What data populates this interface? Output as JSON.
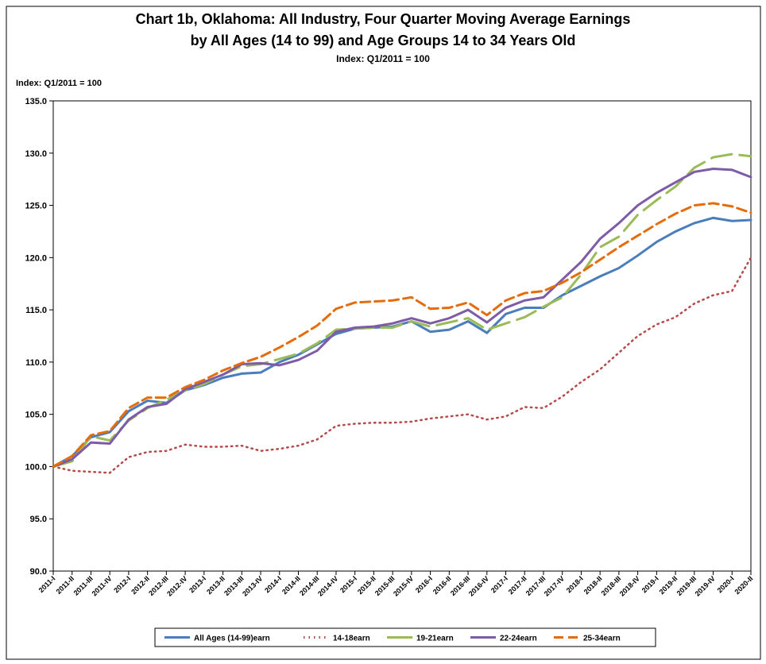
{
  "chart_data": {
    "type": "line",
    "title": "Chart 1b, Oklahoma: All Industry, Four Quarter Moving Average Earnings",
    "subtitle": "by All Ages (14 to 99)  and Age Groups 14 to 34 Years Old",
    "subtitle2": "Index: Q1/2011 = 100",
    "y_label": "Index: Q1/2011 = 100",
    "categories": [
      "2011-I",
      "2011-II",
      "2011-III",
      "2011-IV",
      "2012-I",
      "2012-II",
      "2012-III",
      "2012-IV",
      "2013-I",
      "2013-II",
      "2013-III",
      "2013-IV",
      "2014-I",
      "2014-II",
      "2014-III",
      "2014-IV",
      "2015-I",
      "2015-II",
      "2015-III",
      "2015-IV",
      "2016-I",
      "2016-II",
      "2016-III",
      "2016-IV",
      "2017-I",
      "2017-II",
      "2017-III",
      "2017-IV",
      "2018-I",
      "2018-II",
      "2018-III",
      "2018-IV",
      "2019-I",
      "2019-II",
      "2019-III",
      "2019-IV",
      "2020-I",
      "2020-II"
    ],
    "ylim": [
      90,
      135
    ],
    "yticks": [
      {
        "value": 90,
        "label": "90.0"
      },
      {
        "value": 95,
        "label": "95.0"
      },
      {
        "value": 100,
        "label": "100.0"
      },
      {
        "value": 105,
        "label": "105.0"
      },
      {
        "value": 110,
        "label": "110.0"
      },
      {
        "value": 115,
        "label": "115.0"
      },
      {
        "value": 120,
        "label": "120.0"
      },
      {
        "value": 125,
        "label": "125.0"
      },
      {
        "value": 130,
        "label": "130.0"
      },
      {
        "value": 135,
        "label": "135.0"
      }
    ],
    "legend": "bottom",
    "series": [
      {
        "name": "All Ages (14-99)earn",
        "color": "#4a7ebb",
        "style": "solid",
        "values": [
          100,
          101,
          102.8,
          103.3,
          105.3,
          106.3,
          106.1,
          107.3,
          107.8,
          108.5,
          108.9,
          109.0,
          110.0,
          110.7,
          111.7,
          112.7,
          113.2,
          113.3,
          113.4,
          113.9,
          112.9,
          113.1,
          113.9,
          112.8,
          114.6,
          115.2,
          115.2,
          116.4,
          117.3,
          118.2,
          119.0,
          120.2,
          121.5,
          122.5,
          123.3,
          123.8,
          123.5,
          123.6
        ]
      },
      {
        "name": "14-18earn",
        "color": "#b5494a",
        "style": "dotted",
        "values": [
          100,
          99.6,
          99.5,
          99.4,
          100.9,
          101.4,
          101.5,
          102.1,
          101.9,
          101.9,
          102.0,
          101.5,
          101.7,
          102.0,
          102.6,
          103.9,
          104.1,
          104.2,
          104.2,
          104.3,
          104.6,
          104.8,
          105.0,
          104.5,
          104.8,
          105.7,
          105.6,
          106.7,
          108.1,
          109.3,
          110.9,
          112.5,
          113.6,
          114.3,
          115.6,
          116.4,
          116.8,
          120.0
        ]
      },
      {
        "name": "19-21earn",
        "color": "#9bbb59",
        "style": "longdash",
        "values": [
          100,
          100.5,
          102.9,
          102.5,
          104.4,
          105.6,
          106.4,
          107.3,
          107.9,
          108.8,
          109.6,
          109.8,
          110.3,
          110.8,
          111.8,
          113.1,
          113.2,
          113.3,
          113.3,
          113.9,
          113.4,
          113.8,
          114.2,
          113.1,
          113.7,
          114.3,
          115.3,
          116.2,
          118.4,
          121.0,
          122.0,
          124.1,
          125.5,
          126.8,
          128.6,
          129.6,
          129.9,
          129.7
        ]
      },
      {
        "name": "22-24earn",
        "color": "#7d5ba6",
        "style": "solid",
        "values": [
          100,
          100.7,
          102.3,
          102.2,
          104.5,
          105.7,
          106.0,
          107.4,
          108.1,
          108.8,
          109.8,
          109.9,
          109.7,
          110.2,
          111.1,
          112.9,
          113.3,
          113.4,
          113.7,
          114.2,
          113.7,
          114.2,
          115.0,
          113.8,
          115.2,
          115.9,
          116.2,
          117.9,
          119.6,
          121.8,
          123.3,
          125.0,
          126.2,
          127.2,
          128.2,
          128.5,
          128.4,
          127.7
        ]
      },
      {
        "name": "25-34earn",
        "color": "#e46c0a",
        "style": "dashed",
        "values": [
          100,
          101.0,
          103.0,
          103.4,
          105.6,
          106.6,
          106.6,
          107.6,
          108.3,
          109.2,
          109.9,
          110.5,
          111.4,
          112.4,
          113.5,
          115.1,
          115.7,
          115.8,
          115.9,
          116.2,
          115.1,
          115.2,
          115.7,
          114.5,
          115.9,
          116.6,
          116.8,
          117.6,
          118.6,
          119.8,
          121.0,
          122.1,
          123.2,
          124.2,
          125.0,
          125.2,
          124.9,
          124.3
        ]
      }
    ]
  }
}
